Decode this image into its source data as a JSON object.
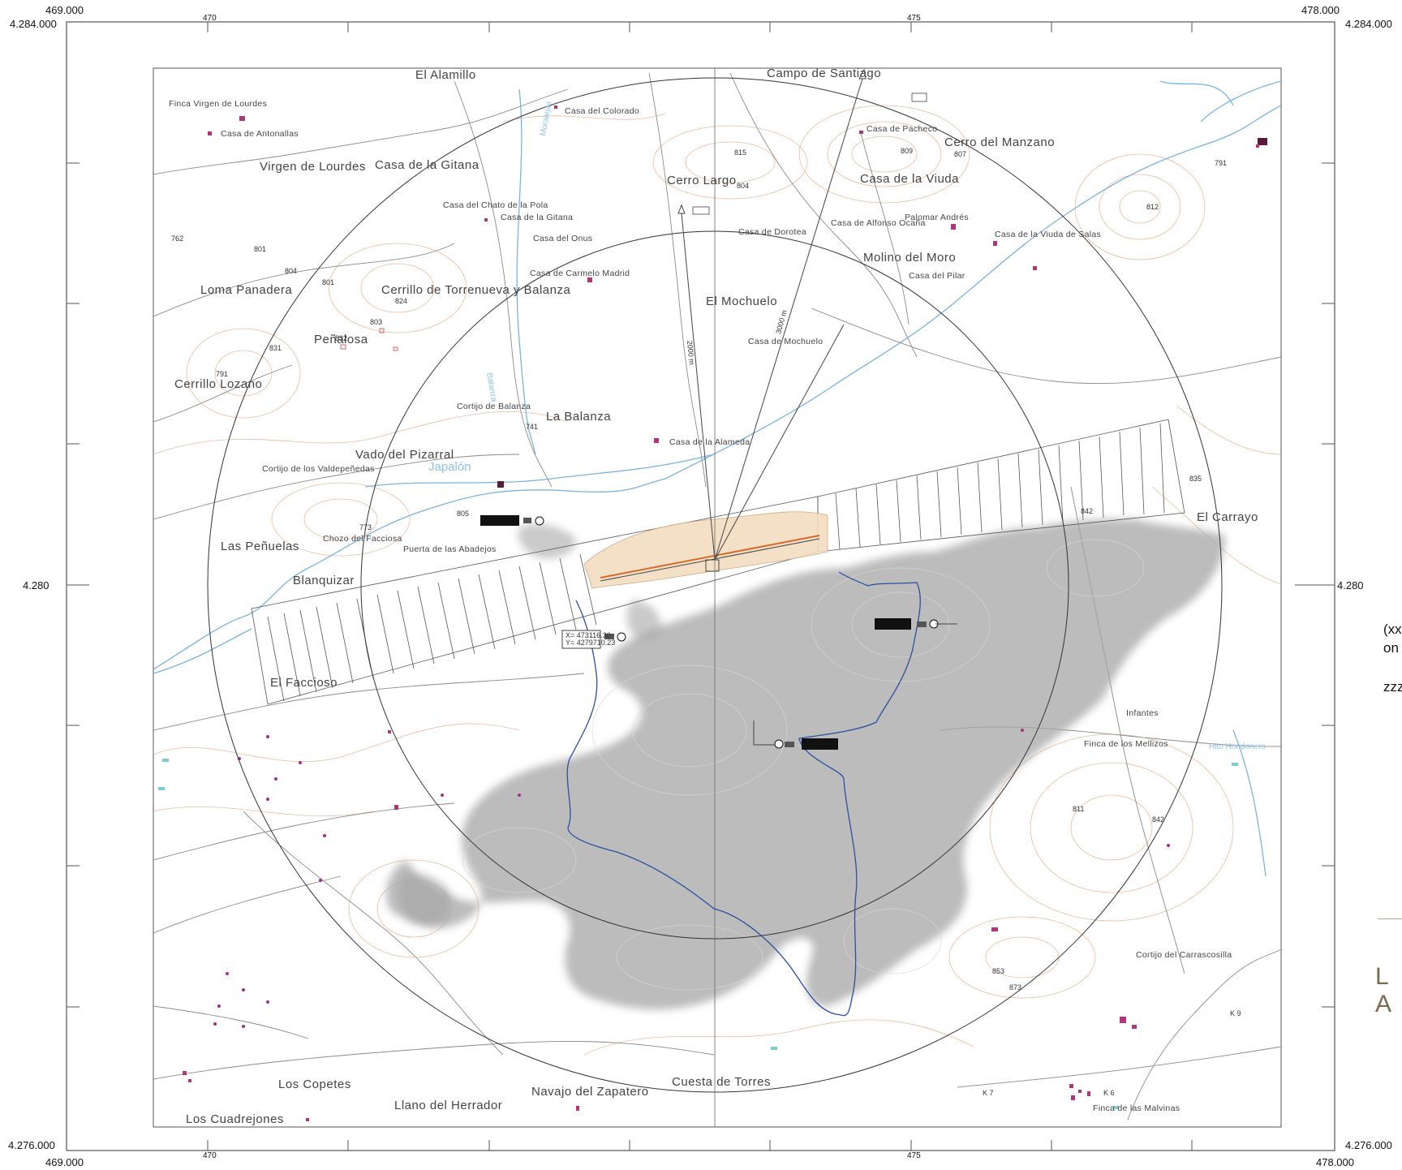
{
  "frame": {
    "outer_coords": {
      "top_left_x": "469.000",
      "top_right_x": "478.000",
      "bottom_left_x": "469.000",
      "bottom_right_x": "478.000",
      "top_y": "4.284.000",
      "bottom_y": "4.276.000",
      "mid_y": "4.280"
    },
    "grid_labels": {
      "x_470": "470",
      "x_475": "475"
    }
  },
  "places": {
    "el_alamillo": "El Alamillo",
    "campo_santiago": "Campo de Santiago",
    "finca_virgen": "Finca Virgen de Lourdes",
    "casa_antonallas": "Casa de Antonallas",
    "casa_colorado": "Casa del Colorado",
    "casa_pacheco": "Casa de Pacheco",
    "cerro_manzano": "Cerro del Manzano",
    "virgen_lourdes": "Virgen de Lourdes",
    "casa_gitana_big": "Casa de la Gitana",
    "cerro_largo": "Cerro Largo",
    "casa_viuda": "Casa de la Viuda",
    "casa_chato": "Casa del Chato de la Pola",
    "casa_gitana": "Casa de la Gitana",
    "casa_onus": "Casa del Onus",
    "casa_dorotea": "Casa de Dorotea",
    "casa_alfonso": "Casa de Alfonso Ocaña",
    "palomar_andres": "Palomar Andrés",
    "casa_viuda_salas": "Casa de la Viuda de Salas",
    "molino_moro": "Molino del Moro",
    "casa_pilar": "Casa del Pilar",
    "casa_carmelo": "Casa de Carmelo Madrid",
    "loma_panadera": "Loma Panadera",
    "cerrillo_torrenueva": "Cerrillo de Torrenueva y Balanza",
    "el_mochuelo": "El Mochuelo",
    "penalosa": "Peñalosa",
    "casa_mochuelo": "Casa de Mochuelo",
    "cerrillo_lozano": "Cerrillo Lozano",
    "cortijo_balanza": "Cortijo de Balanza",
    "la_balanza": "La Balanza",
    "casa_alameda": "Casa de la Alameda",
    "vado_pizarral": "Vado del Pizarral",
    "cortijo_valdepenedas": "Cortijo de los Valdepeñedas",
    "chozo_facciosa": "Chozo del Facciosa",
    "puerta_abadejos": "Puerta de las Abadejos",
    "las_penuelas": "Las Peñuelas",
    "blanquizar": "Blanquizar",
    "el_carrayo": "El Carrayo",
    "el_faccioso": "El Faccioso",
    "finca_mellizos": "Finca de los Mellizos",
    "infantes": "Infantes",
    "cortijo_carrascosilla": "Cortijo del Carrascosilla",
    "los_copetes": "Los Copetes",
    "llano_herrador": "Llano del Herrador",
    "navajo_zapatero": "Navajo del Zapatero",
    "cuesta_torres": "Cuesta de Torres",
    "los_cuadrejones": "Los Cuadrejones",
    "finca_malvinas": "Finca de las Malvinas"
  },
  "water": {
    "japalon": "Japalón",
    "hito_hondonero": "Hito Hondonero",
    "arroyo_balanza": "Balanza",
    "arroyo_moralejas": "Moralejas"
  },
  "spot_heights": [
    "815",
    "809",
    "807",
    "791",
    "812",
    "804",
    "762",
    "801",
    "804",
    "801",
    "824",
    "803",
    "832",
    "831",
    "791",
    "741",
    "805",
    "773",
    "835",
    "842",
    "811",
    "842",
    "853",
    "873",
    "K 9",
    "K 7",
    "K 6"
  ],
  "annotations": {
    "coord_box_1_x": "X= 473116.30",
    "coord_box_1_y": "Y= 4279710.23",
    "radius_label": "3000 m",
    "radius_label_2": "2000 m"
  },
  "side_panel": {
    "line1": "(xx",
    "line2": "on",
    "line3": "zzz",
    "brand": "L A"
  },
  "colors": {
    "contour": "#e7b08a",
    "water": "#4f8fc9",
    "road": "#8a8a8a",
    "shadow": "#a6a6a6",
    "building": "#b0367a",
    "route": "#2b4fa0"
  }
}
